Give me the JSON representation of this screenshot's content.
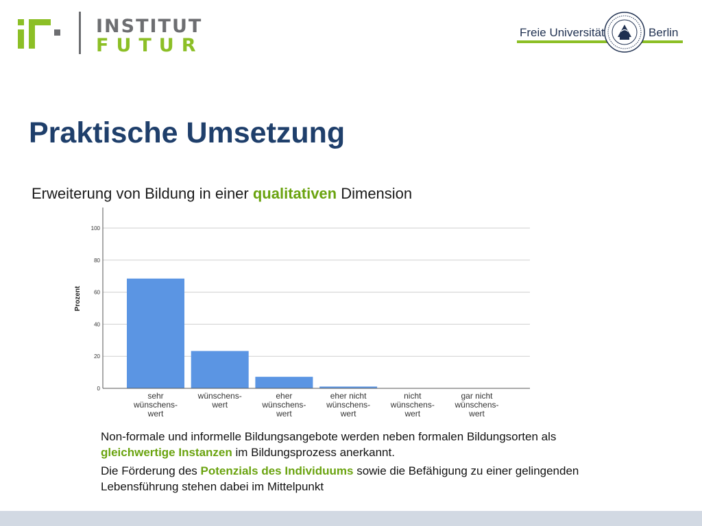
{
  "header": {
    "institute_line1": "INSTITUT",
    "institute_line2": "FUTUR",
    "university_left": "Freie Universität",
    "university_right": "Berlin"
  },
  "slide": {
    "title": "Praktische Umsetzung",
    "subtitle": {
      "before": "Erweiterung von Bildung in einer ",
      "highlight": "qualitativen",
      "after": " Dimension"
    }
  },
  "chart_data": {
    "type": "bar",
    "ylabel": "Prozent",
    "xlabel": "",
    "ylim": [
      0,
      100
    ],
    "yticks": [
      0,
      20,
      40,
      60,
      80,
      100
    ],
    "grid": true,
    "bar_color": "#5b95e3",
    "categories": [
      [
        "sehr",
        "wünschens-",
        "wert"
      ],
      [
        "wünschens-",
        "wert"
      ],
      [
        "eher",
        "wünschens-",
        "wert"
      ],
      [
        "eher nicht",
        "wünschens-",
        "wert"
      ],
      [
        "nicht",
        "wünschens-",
        "wert"
      ],
      [
        "gar nicht",
        "wünschens-",
        "wert"
      ]
    ],
    "values": [
      68.5,
      23.3,
      7.2,
      1.1,
      0,
      0
    ]
  },
  "bullets": [
    {
      "before": "Non-formale und informelle Bildungsangebote werden neben formalen Bildungsorten als ",
      "highlight": "gleichwertige Instanzen",
      "after": " im Bildungsprozess anerkannt."
    },
    {
      "before": "Die Förderung des ",
      "highlight": "Potenzials des Individuums",
      "after": " sowie die Befähigung zu einer gelingenden Lebensführung stehen dabei im Mittelpunkt"
    }
  ],
  "colors": {
    "title": "#1f3f6b",
    "accent": "#6aa30f",
    "logo_green": "#8cbf26",
    "logo_gray": "#6d6e71",
    "footer": "#d2d9e3"
  }
}
